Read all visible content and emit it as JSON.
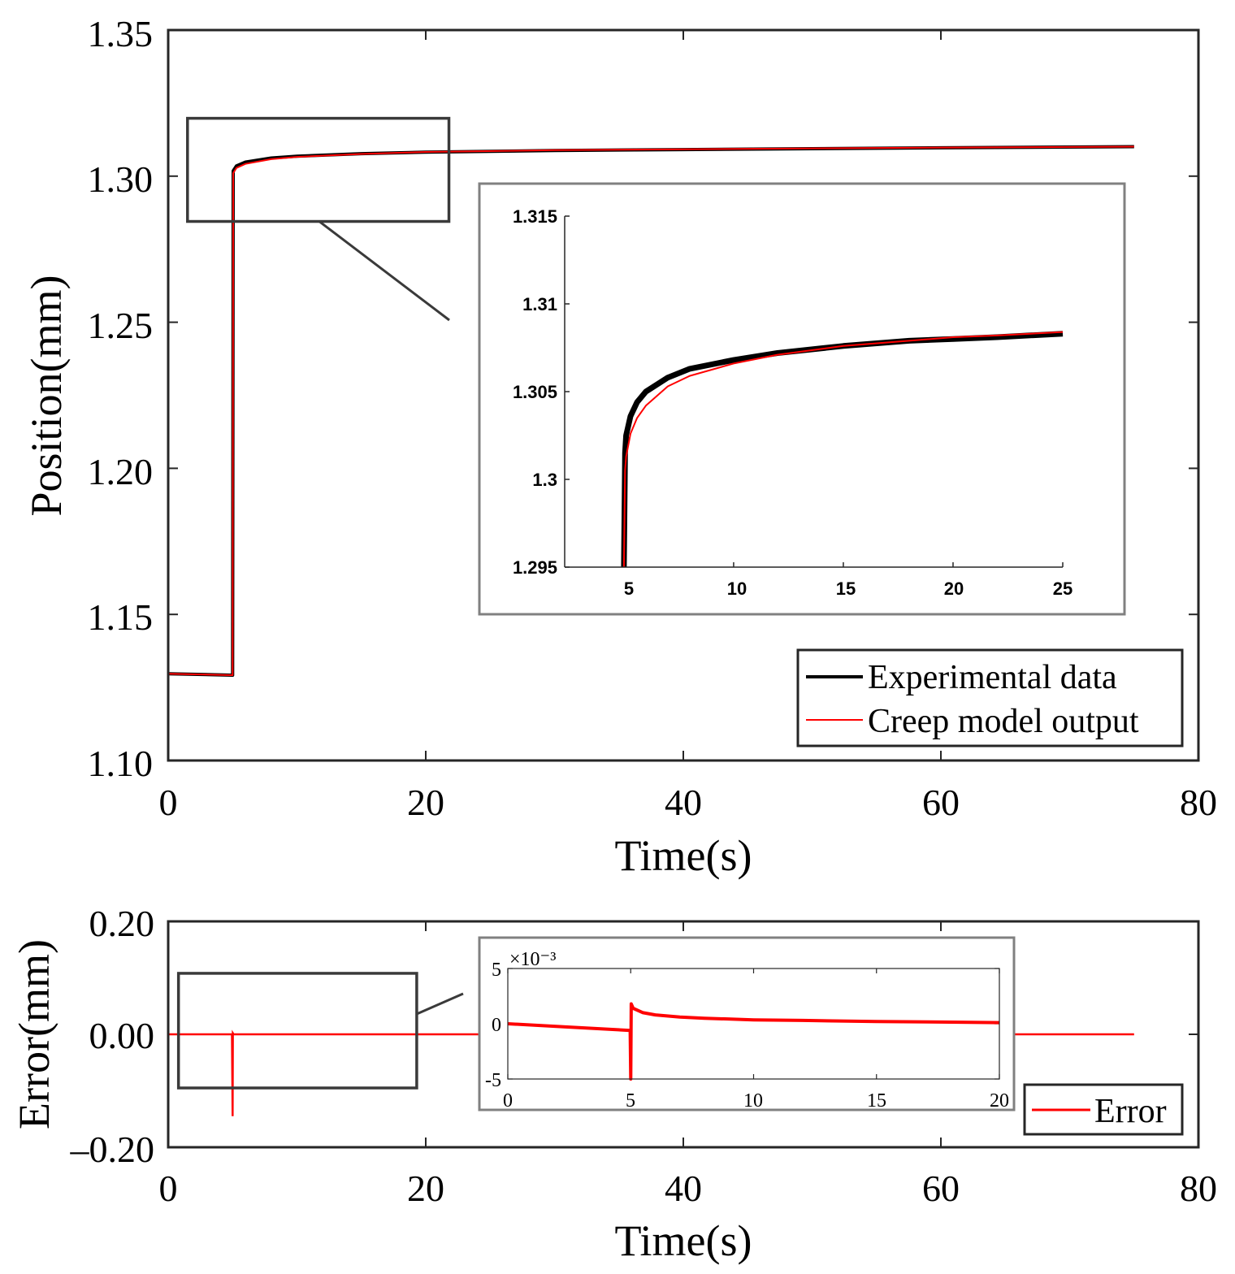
{
  "chart_data": [
    {
      "id": "position",
      "type": "line",
      "xlabel": "Time(s)",
      "ylabel": "Position(mm)",
      "xlim": [
        0,
        80
      ],
      "ylim": [
        1.1,
        1.35
      ],
      "xticks": [
        "0",
        "20",
        "40",
        "60",
        "80"
      ],
      "yticks": [
        "1.10",
        "1.15",
        "1.20",
        "1.25",
        "1.30",
        "1.35"
      ],
      "legend": [
        "Experimental data",
        "Creep model output"
      ],
      "legend_position": "bottom-right",
      "series": [
        {
          "name": "Experimental data",
          "color": "#000000",
          "x": [
            0,
            5.0,
            5.05,
            5.3,
            6,
            8,
            10,
            15,
            20,
            30,
            40,
            50,
            60,
            75
          ],
          "y": [
            1.1297,
            1.1292,
            1.3018,
            1.3035,
            1.3048,
            1.3062,
            1.3068,
            1.3077,
            1.3082,
            1.3088,
            1.3091,
            1.3094,
            1.3097,
            1.3101
          ]
        },
        {
          "name": "Creep model output",
          "color": "#ff0000",
          "x": [
            0,
            5.0,
            5.05,
            5.3,
            6,
            8,
            10,
            15,
            20,
            30,
            40,
            50,
            60,
            75
          ],
          "y": [
            1.1297,
            1.1292,
            1.301,
            1.3028,
            1.3042,
            1.3058,
            1.3066,
            1.3076,
            1.3083,
            1.3089,
            1.3092,
            1.3095,
            1.3098,
            1.3101
          ]
        }
      ],
      "zoom_box": {
        "xlim": [
          1.5,
          21.8
        ],
        "ylim": [
          1.2845,
          1.3198
        ]
      }
    },
    {
      "id": "position-inset",
      "type": "line",
      "xlim": [
        2.3,
        25
      ],
      "ylim": [
        1.295,
        1.315
      ],
      "xticks": [
        5,
        10,
        15,
        20,
        25
      ],
      "yticks": [
        1.295,
        1.3,
        1.305,
        1.31,
        1.315
      ],
      "xtick_labels": [
        "5",
        "10",
        "15",
        "20",
        "25"
      ],
      "ytick_labels": [
        "1.295",
        "1.3",
        "1.305",
        "1.31",
        "1.315"
      ],
      "series": [
        {
          "name": "Experimental data",
          "color": "#000000",
          "x": [
            5.0,
            5.05,
            5.1,
            5.3,
            5.6,
            6,
            7,
            8,
            10,
            12,
            15,
            18,
            20,
            22,
            25
          ],
          "y": [
            1.295,
            1.3015,
            1.3025,
            1.3036,
            1.3044,
            1.305,
            1.3058,
            1.3063,
            1.3068,
            1.3072,
            1.3076,
            1.3079,
            1.308,
            1.3081,
            1.3083
          ]
        },
        {
          "name": "Creep model output",
          "color": "#ff0000",
          "x": [
            5.0,
            5.05,
            5.1,
            5.3,
            5.6,
            6,
            7,
            8,
            10,
            12,
            15,
            18,
            20,
            22,
            25
          ],
          "y": [
            1.295,
            1.3005,
            1.3013,
            1.3026,
            1.3035,
            1.3042,
            1.3053,
            1.3059,
            1.3066,
            1.3071,
            1.3076,
            1.3079,
            1.3081,
            1.3082,
            1.3084
          ]
        }
      ]
    },
    {
      "id": "error",
      "type": "line",
      "xlabel": "Time(s)",
      "ylabel": "Error(mm)",
      "xlim": [
        0,
        80
      ],
      "ylim": [
        -0.2,
        0.2
      ],
      "xticks": [
        "0",
        "20",
        "40",
        "60",
        "80"
      ],
      "yticks": [
        "–0.20",
        "0.00",
        "0.20"
      ],
      "legend": [
        "Error"
      ],
      "legend_position": "bottom-right",
      "series": [
        {
          "name": "Error",
          "color": "#ff0000",
          "x": [
            0,
            4.95,
            5.0,
            5.02,
            5.08,
            20,
            75
          ],
          "y": [
            0.0,
            0.0,
            -0.145,
            0.002,
            0.0,
            0.0,
            0.0
          ]
        }
      ],
      "zoom_box": {
        "xlim": [
          0.8,
          19.3
        ],
        "ylim": [
          -0.095,
          0.108
        ]
      }
    },
    {
      "id": "error-inset",
      "type": "line",
      "xlim": [
        0,
        20
      ],
      "ylim": [
        -5,
        5
      ],
      "exponent_label": "×10⁻³",
      "xticks": [
        0,
        5,
        10,
        15,
        20
      ],
      "yticks": [
        -5,
        0,
        5
      ],
      "xtick_labels": [
        "0",
        "5",
        "10",
        "15",
        "20"
      ],
      "ytick_labels": [
        "-5",
        "0",
        "5"
      ],
      "series": [
        {
          "name": "Error",
          "color": "#ff0000",
          "x": [
            0,
            2.5,
            4.98,
            5.0,
            5.02,
            5.1,
            5.5,
            6,
            7,
            8,
            10,
            12,
            15,
            18,
            20
          ],
          "y": [
            0.0,
            -0.3,
            -0.6,
            -5.0,
            1.8,
            1.4,
            1.0,
            0.8,
            0.6,
            0.5,
            0.35,
            0.3,
            0.2,
            0.15,
            0.1
          ]
        }
      ]
    }
  ]
}
